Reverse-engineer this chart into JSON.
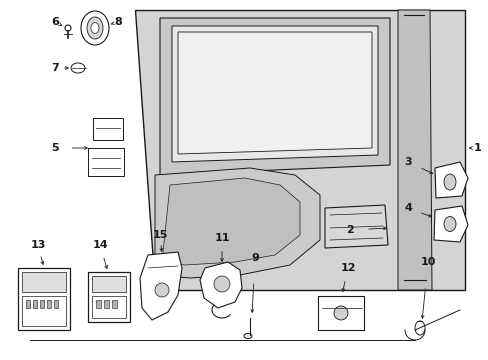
{
  "bg": "#ffffff",
  "lc": "#1a1a1a",
  "panel_gray": "#d4d4d4",
  "panel_gray2": "#c8c8c8",
  "white": "#ffffff",
  "figsize": [
    4.89,
    3.6
  ],
  "dpi": 100
}
